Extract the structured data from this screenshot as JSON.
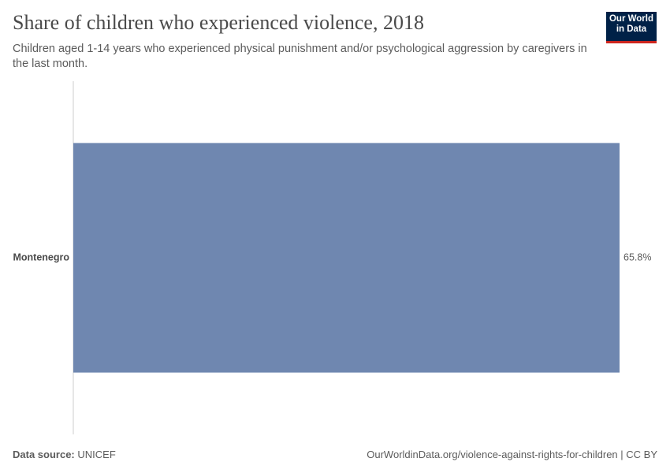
{
  "chart_data": {
    "type": "bar",
    "orientation": "horizontal",
    "title": "Share of children who experienced violence, 2018",
    "subtitle": "Children aged 1-14 years who experienced physical punishment and/or psychological aggression by caregivers in the last month.",
    "categories": [
      "Montenegro"
    ],
    "values": [
      65.8
    ],
    "value_labels": [
      "65.8%"
    ],
    "color": "#6f87b0",
    "source_label": "Data source:",
    "source": "UNICEF",
    "footer_right": "OurWorldinData.org/violence-against-rights-for-children | CC BY",
    "logo": [
      "Our World",
      "in Data"
    ]
  }
}
